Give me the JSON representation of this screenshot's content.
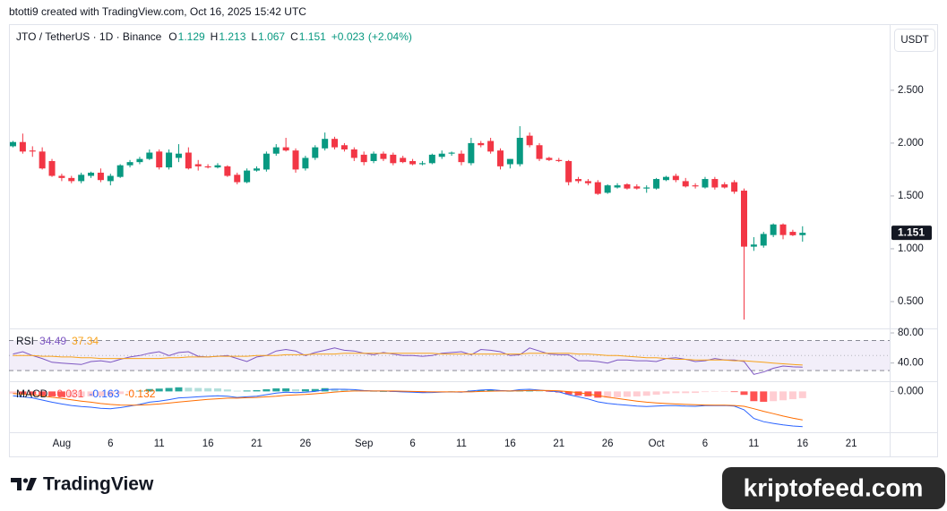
{
  "header": "btotti9 created with TradingView.com, Oct 16, 2025 15:42 UTC",
  "branding": "TradingView",
  "watermark": "kriptofeed.com",
  "chart_data": [
    {
      "type": "candlestick",
      "title": "JTO / TetherUS · 1D · Binance",
      "currency": "USDT",
      "legend_labels": [
        "O",
        "H",
        "L",
        "C"
      ],
      "change": {
        "value": 0.023,
        "label": "+0.023"
      },
      "change_pct": {
        "value": 2.04,
        "label": "(+2.04%)"
      },
      "up_color": "#089981",
      "down_color": "#f23645",
      "ylim": [
        0.246,
        3.117
      ],
      "yticks": [
        {
          "value": 0.5,
          "label": "0.500"
        },
        {
          "value": 1,
          "label": "1.000"
        },
        {
          "value": 1.5,
          "label": "1.500"
        },
        {
          "value": 2,
          "label": "2.000"
        },
        {
          "value": 2.5,
          "label": "2.500"
        }
      ],
      "categories": [
        null,
        null,
        null,
        null,
        null,
        "Aug",
        null,
        null,
        null,
        null,
        "6",
        null,
        null,
        null,
        null,
        "11",
        null,
        null,
        null,
        null,
        "16",
        null,
        null,
        null,
        null,
        "21",
        null,
        null,
        null,
        null,
        "26",
        null,
        null,
        null,
        null,
        null,
        "Sep",
        null,
        null,
        null,
        null,
        "6",
        null,
        null,
        null,
        null,
        "11",
        null,
        null,
        null,
        null,
        "16",
        null,
        null,
        null,
        null,
        "21",
        null,
        null,
        null,
        null,
        "26",
        null,
        null,
        null,
        null,
        "Oct",
        null,
        null,
        null,
        null,
        "6",
        null,
        null,
        null,
        null,
        "11",
        null,
        null,
        null,
        null,
        "16",
        null,
        null,
        null,
        null,
        "21",
        null,
        null,
        null
      ],
      "open": [
        1.97,
        2.01,
        1.93,
        1.92,
        1.83,
        1.69,
        1.67,
        1.64,
        1.69,
        1.72,
        1.64,
        1.68,
        1.79,
        1.82,
        1.85,
        1.92,
        1.77,
        1.86,
        1.91,
        1.8,
        1.78,
        1.77,
        1.78,
        1.7,
        1.63,
        1.74,
        1.75,
        1.9,
        1.96,
        1.93,
        1.76,
        1.86,
        1.95,
        2.04,
        1.98,
        1.94,
        1.89,
        1.83,
        1.9,
        1.89,
        1.86,
        1.83,
        1.8,
        1.81,
        1.87,
        1.9,
        1.9,
        1.81,
        2.0,
        2.02,
        1.93,
        1.8,
        1.8,
        2.07,
        1.98,
        1.86,
        1.84,
        1.83,
        1.66,
        1.64,
        1.63,
        1.53,
        1.58,
        1.61,
        1.59,
        1.57,
        1.57,
        1.65,
        1.69,
        1.64,
        1.6,
        1.58,
        1.66,
        1.61,
        1.63,
        1.55,
        1.02,
        1.03,
        1.13,
        1.23,
        1.16,
        1.129,
        null,
        null,
        null,
        null,
        null,
        null,
        null,
        null
      ],
      "high": [
        2.02,
        2.09,
        1.97,
        1.96,
        1.85,
        1.71,
        1.69,
        1.72,
        1.73,
        1.76,
        1.71,
        1.8,
        1.84,
        1.87,
        1.94,
        1.94,
        1.94,
        1.99,
        1.96,
        1.84,
        1.8,
        1.81,
        1.79,
        1.72,
        1.76,
        1.78,
        1.92,
        1.99,
        2.05,
        1.95,
        1.88,
        1.98,
        2.1,
        2.06,
        2.0,
        1.96,
        1.92,
        1.92,
        1.92,
        1.91,
        1.88,
        1.85,
        1.83,
        1.9,
        1.93,
        1.92,
        1.93,
        2.05,
        2.02,
        2.05,
        1.95,
        1.85,
        2.16,
        2.1,
        2.0,
        1.87,
        1.86,
        1.84,
        1.68,
        1.66,
        1.65,
        1.61,
        1.62,
        1.62,
        1.61,
        1.6,
        1.67,
        1.69,
        1.71,
        1.67,
        1.62,
        1.68,
        1.68,
        1.63,
        1.65,
        1.57,
        1.11,
        1.16,
        1.24,
        1.24,
        1.18,
        1.213,
        null,
        null,
        null,
        null,
        null,
        null,
        null,
        null
      ],
      "low": [
        1.96,
        1.9,
        1.87,
        1.75,
        1.68,
        1.64,
        1.62,
        1.62,
        1.67,
        1.63,
        1.6,
        1.67,
        1.77,
        1.8,
        1.84,
        1.75,
        1.75,
        1.82,
        1.75,
        1.74,
        1.76,
        1.76,
        1.68,
        1.61,
        1.62,
        1.73,
        1.73,
        1.88,
        1.92,
        1.72,
        1.74,
        1.84,
        1.93,
        1.94,
        1.92,
        1.83,
        1.79,
        1.81,
        1.83,
        1.79,
        1.81,
        1.79,
        1.79,
        1.8,
        1.85,
        1.88,
        1.79,
        1.79,
        1.96,
        1.9,
        1.75,
        1.76,
        1.78,
        1.96,
        1.83,
        1.83,
        1.82,
        1.6,
        1.62,
        1.6,
        1.51,
        1.52,
        1.57,
        1.56,
        1.56,
        1.53,
        1.56,
        1.64,
        1.63,
        1.58,
        1.57,
        1.57,
        1.56,
        1.57,
        1.52,
        0.33,
        0.98,
        1.01,
        1.11,
        1.09,
        1.12,
        1.067,
        null,
        null,
        null,
        null,
        null,
        null,
        null,
        null
      ],
      "close": [
        2.01,
        1.92,
        1.92,
        1.76,
        1.69,
        1.67,
        1.64,
        1.7,
        1.72,
        1.65,
        1.69,
        1.79,
        1.82,
        1.85,
        1.91,
        1.77,
        1.91,
        1.9,
        1.76,
        1.78,
        1.77,
        1.79,
        1.69,
        1.63,
        1.74,
        1.76,
        1.9,
        1.96,
        1.93,
        1.75,
        1.86,
        1.96,
        2.04,
        1.96,
        1.94,
        1.86,
        1.82,
        1.9,
        1.85,
        1.81,
        1.82,
        1.8,
        1.81,
        1.89,
        1.9,
        1.91,
        1.82,
        2.0,
        1.98,
        1.92,
        1.78,
        1.85,
        2.05,
        1.98,
        1.85,
        1.84,
        1.83,
        1.63,
        1.64,
        1.62,
        1.52,
        1.6,
        1.6,
        1.57,
        1.57,
        1.58,
        1.66,
        1.68,
        1.65,
        1.59,
        1.59,
        1.66,
        1.58,
        1.58,
        1.54,
        1.02,
        1.04,
        1.14,
        1.23,
        1.13,
        1.128,
        1.151,
        null,
        null,
        null,
        null,
        null,
        null,
        null,
        null
      ]
    },
    {
      "type": "rsi",
      "title": "RSI",
      "ylim": [
        15.8,
        84.8
      ],
      "yticks": [
        {
          "value": 80,
          "label": "80.00"
        },
        {
          "value": 40,
          "label": "40.00"
        }
      ],
      "band": [
        30,
        70
      ],
      "midline": 50,
      "band_color": "#7e57c2",
      "series": [
        {
          "color": "#7e57c2",
          "values": [
            52,
            55,
            50,
            46,
            41,
            40,
            39,
            38,
            42,
            43,
            41,
            45,
            48,
            50,
            53,
            55,
            50,
            54,
            55,
            49,
            48,
            49,
            50,
            46,
            42,
            48,
            50,
            56,
            58,
            56,
            50,
            54,
            57,
            60,
            57,
            56,
            53,
            51,
            54,
            52,
            50,
            50,
            49,
            50,
            53,
            54,
            55,
            51,
            58,
            57,
            55,
            50,
            51,
            60,
            56,
            52,
            51,
            51,
            43,
            43,
            42,
            40,
            44,
            44,
            43,
            43,
            42,
            46,
            47,
            45,
            42,
            43,
            46,
            44,
            44,
            42,
            25,
            28,
            33,
            36,
            35,
            34.49
          ]
        },
        {
          "color": "#f7a21b",
          "values": [
            50,
            50,
            50,
            49,
            49,
            48,
            48,
            47,
            47,
            46,
            46,
            46,
            46,
            46,
            46,
            46,
            47,
            47,
            48,
            48,
            48,
            49,
            49,
            49,
            49,
            50,
            50,
            50,
            51,
            51,
            51,
            52,
            52,
            52,
            53,
            53,
            53,
            53,
            53,
            53,
            53,
            53,
            53,
            53,
            52,
            52,
            52,
            52,
            52,
            52,
            52,
            52,
            52,
            53,
            53,
            53,
            53,
            53,
            52,
            52,
            51,
            50,
            50,
            49,
            48,
            47,
            47,
            46,
            45,
            45,
            44,
            44,
            44,
            44,
            43,
            43,
            42,
            41,
            40,
            39,
            38,
            37.34
          ]
        }
      ]
    },
    {
      "type": "macd",
      "title": "MACD",
      "ylim": [
        -0.189,
        0.043
      ],
      "yticks": [
        {
          "value": 0,
          "label": "0.000"
        }
      ],
      "histogram": {
        "colors": [
          "#26a69a",
          "#b2dfdb",
          "#ffcdd2",
          "#ff5252"
        ],
        "values": [
          -0.01,
          -0.012,
          -0.014,
          -0.019,
          -0.023,
          -0.026,
          -0.026,
          -0.025,
          -0.023,
          -0.022,
          -0.02,
          -0.012,
          -0.004,
          0.003,
          0.011,
          0.013,
          0.016,
          0.019,
          0.017,
          0.016,
          0.015,
          0.014,
          0.009,
          0.003,
          0.004,
          0.006,
          0.01,
          0.014,
          0.014,
          0.01,
          0.01,
          0.011,
          0.015,
          0.013,
          0.01,
          0.006,
          0.002,
          0.0,
          0.0,
          -0.002,
          -0.003,
          -0.004,
          -0.005,
          -0.003,
          -0.001,
          0.0,
          -0.002,
          0.004,
          0.006,
          0.007,
          0.002,
          0.0,
          0.005,
          0.006,
          0.001,
          -0.002,
          -0.005,
          -0.014,
          -0.019,
          -0.023,
          -0.029,
          -0.029,
          -0.027,
          -0.025,
          -0.023,
          -0.02,
          -0.015,
          -0.01,
          -0.008,
          -0.008,
          -0.007,
          -0.003,
          -0.002,
          -0.001,
          -0.003,
          -0.016,
          -0.045,
          -0.048,
          -0.045,
          -0.041,
          -0.036,
          -0.031
        ]
      },
      "series": [
        {
          "color": "#2962ff",
          "values": [
            -0.02,
            -0.025,
            -0.03,
            -0.04,
            -0.05,
            -0.058,
            -0.065,
            -0.07,
            -0.073,
            -0.078,
            -0.08,
            -0.075,
            -0.068,
            -0.06,
            -0.05,
            -0.045,
            -0.038,
            -0.03,
            -0.028,
            -0.025,
            -0.022,
            -0.02,
            -0.022,
            -0.028,
            -0.025,
            -0.022,
            -0.015,
            -0.008,
            -0.004,
            -0.006,
            -0.004,
            0.0,
            0.008,
            0.01,
            0.01,
            0.008,
            0.004,
            0.002,
            0.002,
            0.0,
            -0.002,
            -0.004,
            -0.006,
            -0.005,
            -0.003,
            -0.002,
            -0.004,
            0.002,
            0.006,
            0.008,
            0.004,
            0.002,
            0.008,
            0.01,
            0.006,
            0.002,
            -0.002,
            -0.015,
            -0.025,
            -0.035,
            -0.048,
            -0.055,
            -0.06,
            -0.064,
            -0.068,
            -0.07,
            -0.068,
            -0.066,
            -0.066,
            -0.068,
            -0.069,
            -0.066,
            -0.066,
            -0.065,
            -0.068,
            -0.085,
            -0.125,
            -0.14,
            -0.148,
            -0.155,
            -0.16,
            -0.163
          ]
        },
        {
          "color": "#ff6d00",
          "values": [
            -0.01,
            -0.013,
            -0.016,
            -0.021,
            -0.027,
            -0.032,
            -0.039,
            -0.045,
            -0.05,
            -0.056,
            -0.06,
            -0.063,
            -0.064,
            -0.063,
            -0.061,
            -0.058,
            -0.054,
            -0.049,
            -0.045,
            -0.041,
            -0.037,
            -0.034,
            -0.031,
            -0.031,
            -0.029,
            -0.028,
            -0.025,
            -0.022,
            -0.018,
            -0.016,
            -0.014,
            -0.011,
            -0.007,
            -0.003,
            0.0,
            0.002,
            0.002,
            0.002,
            0.002,
            0.002,
            0.001,
            0.0,
            -0.001,
            -0.002,
            -0.002,
            -0.002,
            -0.002,
            -0.002,
            0.0,
            0.001,
            0.002,
            0.002,
            0.003,
            0.004,
            0.005,
            0.004,
            0.003,
            -0.001,
            -0.006,
            -0.012,
            -0.019,
            -0.026,
            -0.033,
            -0.039,
            -0.045,
            -0.05,
            -0.053,
            -0.056,
            -0.058,
            -0.06,
            -0.062,
            -0.063,
            -0.064,
            -0.064,
            -0.065,
            -0.069,
            -0.08,
            -0.092,
            -0.103,
            -0.114,
            -0.124,
            -0.132
          ]
        }
      ]
    }
  ]
}
